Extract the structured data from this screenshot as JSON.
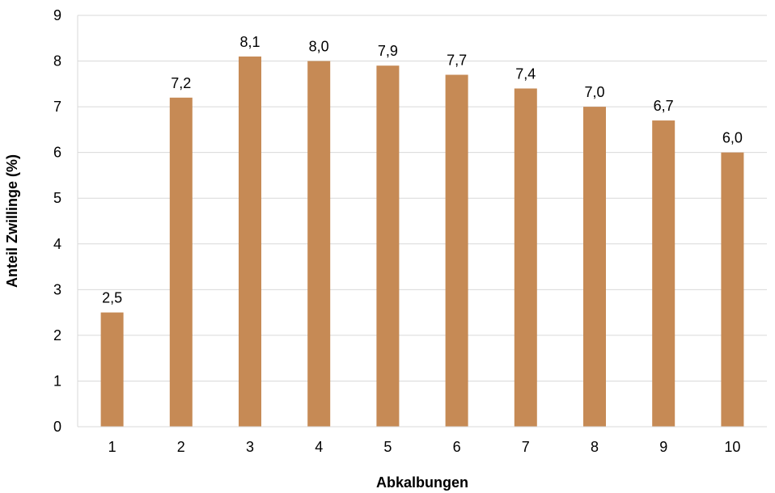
{
  "chart_data": {
    "type": "bar",
    "categories": [
      "1",
      "2",
      "3",
      "4",
      "5",
      "6",
      "7",
      "8",
      "9",
      "10"
    ],
    "values": [
      2.5,
      7.2,
      8.1,
      8.0,
      7.9,
      7.7,
      7.4,
      7.0,
      6.7,
      6.0
    ],
    "data_labels": [
      "2,5",
      "7,2",
      "8,1",
      "8,0",
      "7,9",
      "7,7",
      "7,4",
      "7,0",
      "6,7",
      "6,0"
    ],
    "xlabel": "Abkalbungen",
    "ylabel": "Anteil Zwillinge (%)",
    "ylim": [
      0,
      9
    ],
    "yticks": [
      "0",
      "1",
      "2",
      "3",
      "4",
      "5",
      "6",
      "7",
      "8",
      "9"
    ],
    "grid": true,
    "legend": "none",
    "bar_color": "#C68A55",
    "grid_color": "#D9D9D9"
  }
}
